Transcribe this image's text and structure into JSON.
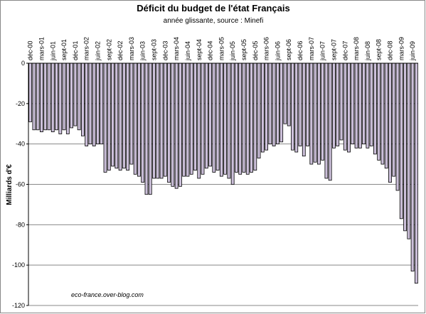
{
  "chart_data": {
    "type": "bar",
    "title": "Déficit du budget de l'état Français",
    "subtitle": "année glissante, source : Minefi",
    "y_label": "Milliards d'€",
    "annotation": "eco-france.over-blog.com",
    "color": "#ccc0da",
    "ylim": [
      -120,
      0
    ],
    "yticks": [
      0,
      -20,
      -40,
      -60,
      -80,
      -100,
      -120
    ],
    "grid": true,
    "categories": [
      "déc-00",
      null,
      null,
      "mars-01",
      null,
      null,
      "juin-01",
      null,
      null,
      "sept-01",
      null,
      null,
      "déc-01",
      null,
      null,
      "mars-02",
      null,
      null,
      "juin-02",
      null,
      null,
      "sept-02",
      null,
      null,
      "déc-02",
      null,
      null,
      "mars-03",
      null,
      null,
      "juin-03",
      null,
      null,
      "sept-03",
      null,
      null,
      "déc-03",
      null,
      null,
      "mars-04",
      null,
      null,
      "juin-04",
      null,
      null,
      "sept-04",
      null,
      null,
      "déc-04",
      null,
      null,
      "mars-05",
      null,
      null,
      "juin-05",
      null,
      null,
      "sept-05",
      null,
      null,
      "déc-05",
      null,
      null,
      "mars-06",
      null,
      null,
      "juin-06",
      null,
      null,
      "sept-06",
      null,
      null,
      "déc-06",
      null,
      null,
      "mars-07",
      null,
      null,
      "juin-07",
      null,
      null,
      "sept-07",
      null,
      null,
      "déc-07",
      null,
      null,
      "mars-08",
      null,
      null,
      "juin-08",
      null,
      null,
      "sept-08",
      null,
      null,
      "déc-08",
      null,
      null,
      "mars-09",
      null,
      null,
      "juin-09",
      null
    ],
    "values": [
      -29,
      -33,
      -33,
      -34,
      -33,
      -33,
      -34,
      -33,
      -35,
      -33,
      -35,
      -32,
      -31,
      -33,
      -36,
      -41,
      -40,
      -41,
      -40,
      -40,
      -54,
      -53,
      -51,
      -52,
      -53,
      -52,
      -53,
      -50,
      -55,
      -56,
      -59,
      -65,
      -65,
      -57,
      -57,
      -57,
      -56,
      -59,
      -61,
      -62,
      -61,
      -56,
      -56,
      -55,
      -53,
      -57,
      -55,
      -52,
      -51,
      -54,
      -53,
      -56,
      -55,
      -57,
      -60,
      -54,
      -55,
      -54,
      -55,
      -54,
      -53,
      -47,
      -44,
      -43,
      -40,
      -41,
      -40,
      -39,
      -30,
      -31,
      -43,
      -44,
      -41,
      -46,
      -41,
      -50,
      -49,
      -50,
      -48,
      -57,
      -58,
      -42,
      -41,
      -38,
      -43,
      -44,
      -40,
      -42,
      -42,
      -40,
      -42,
      -41,
      -45,
      -48,
      -50,
      -52,
      -59,
      -56,
      -63,
      -77,
      -83,
      -87,
      -103,
      -109
    ]
  }
}
